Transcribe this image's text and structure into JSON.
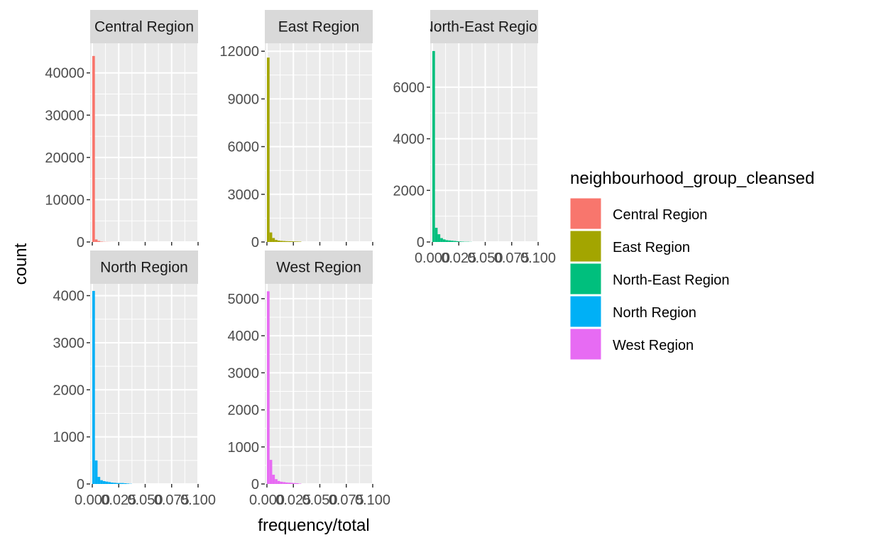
{
  "chart_data": {
    "type": "bar",
    "subtype": "faceted-histogram",
    "xlabel": "frequency/total",
    "ylabel": "count",
    "legend_title": "neighbourhood_group_cleansed",
    "legend_position": "right",
    "grid": true,
    "x_ticks": [
      "0.000",
      "0.025",
      "0.050",
      "0.075",
      "0.100"
    ],
    "xlim": [
      -0.002,
      0.1
    ],
    "bin_width": 0.0025,
    "bin_starts": [
      0.0,
      0.0025,
      0.005,
      0.0075,
      0.01,
      0.0125,
      0.015,
      0.0175,
      0.02,
      0.0225,
      0.025,
      0.0275,
      0.03,
      0.0325,
      0.035
    ],
    "facets": [
      {
        "name": "Central Region",
        "color": "#F8766D",
        "ylim": [
          0,
          47000
        ],
        "y_ticks": [
          0,
          10000,
          20000,
          30000,
          40000
        ],
        "counts": [
          44000,
          600,
          250,
          100,
          50,
          30,
          20,
          10,
          5,
          5,
          0,
          0,
          0,
          0,
          0
        ]
      },
      {
        "name": "East Region",
        "color": "#A3A500",
        "ylim": [
          0,
          12500
        ],
        "y_ticks": [
          0,
          3000,
          6000,
          9000,
          12000
        ],
        "counts": [
          11600,
          600,
          250,
          130,
          90,
          70,
          60,
          50,
          45,
          40,
          35,
          30,
          25,
          0,
          0
        ]
      },
      {
        "name": "North-East Region",
        "color": "#00BF7D",
        "ylim": [
          0,
          7700
        ],
        "y_ticks": [
          0,
          2000,
          4000,
          6000
        ],
        "counts": [
          7400,
          550,
          300,
          150,
          100,
          70,
          60,
          50,
          40,
          30,
          20,
          15,
          10,
          10,
          5
        ]
      },
      {
        "name": "North Region",
        "color": "#00B0F6",
        "ylim": [
          0,
          4250
        ],
        "y_ticks": [
          0,
          1000,
          2000,
          3000,
          4000
        ],
        "counts": [
          4100,
          500,
          150,
          80,
          60,
          50,
          40,
          30,
          25,
          20,
          20,
          20,
          15,
          10,
          5
        ]
      },
      {
        "name": "West Region",
        "color": "#E76BF3",
        "ylim": [
          0,
          5400
        ],
        "y_ticks": [
          0,
          1000,
          2000,
          3000,
          4000,
          5000
        ],
        "counts": [
          5200,
          650,
          250,
          130,
          80,
          60,
          50,
          40,
          35,
          30,
          25,
          20,
          10,
          0,
          0
        ]
      }
    ]
  }
}
